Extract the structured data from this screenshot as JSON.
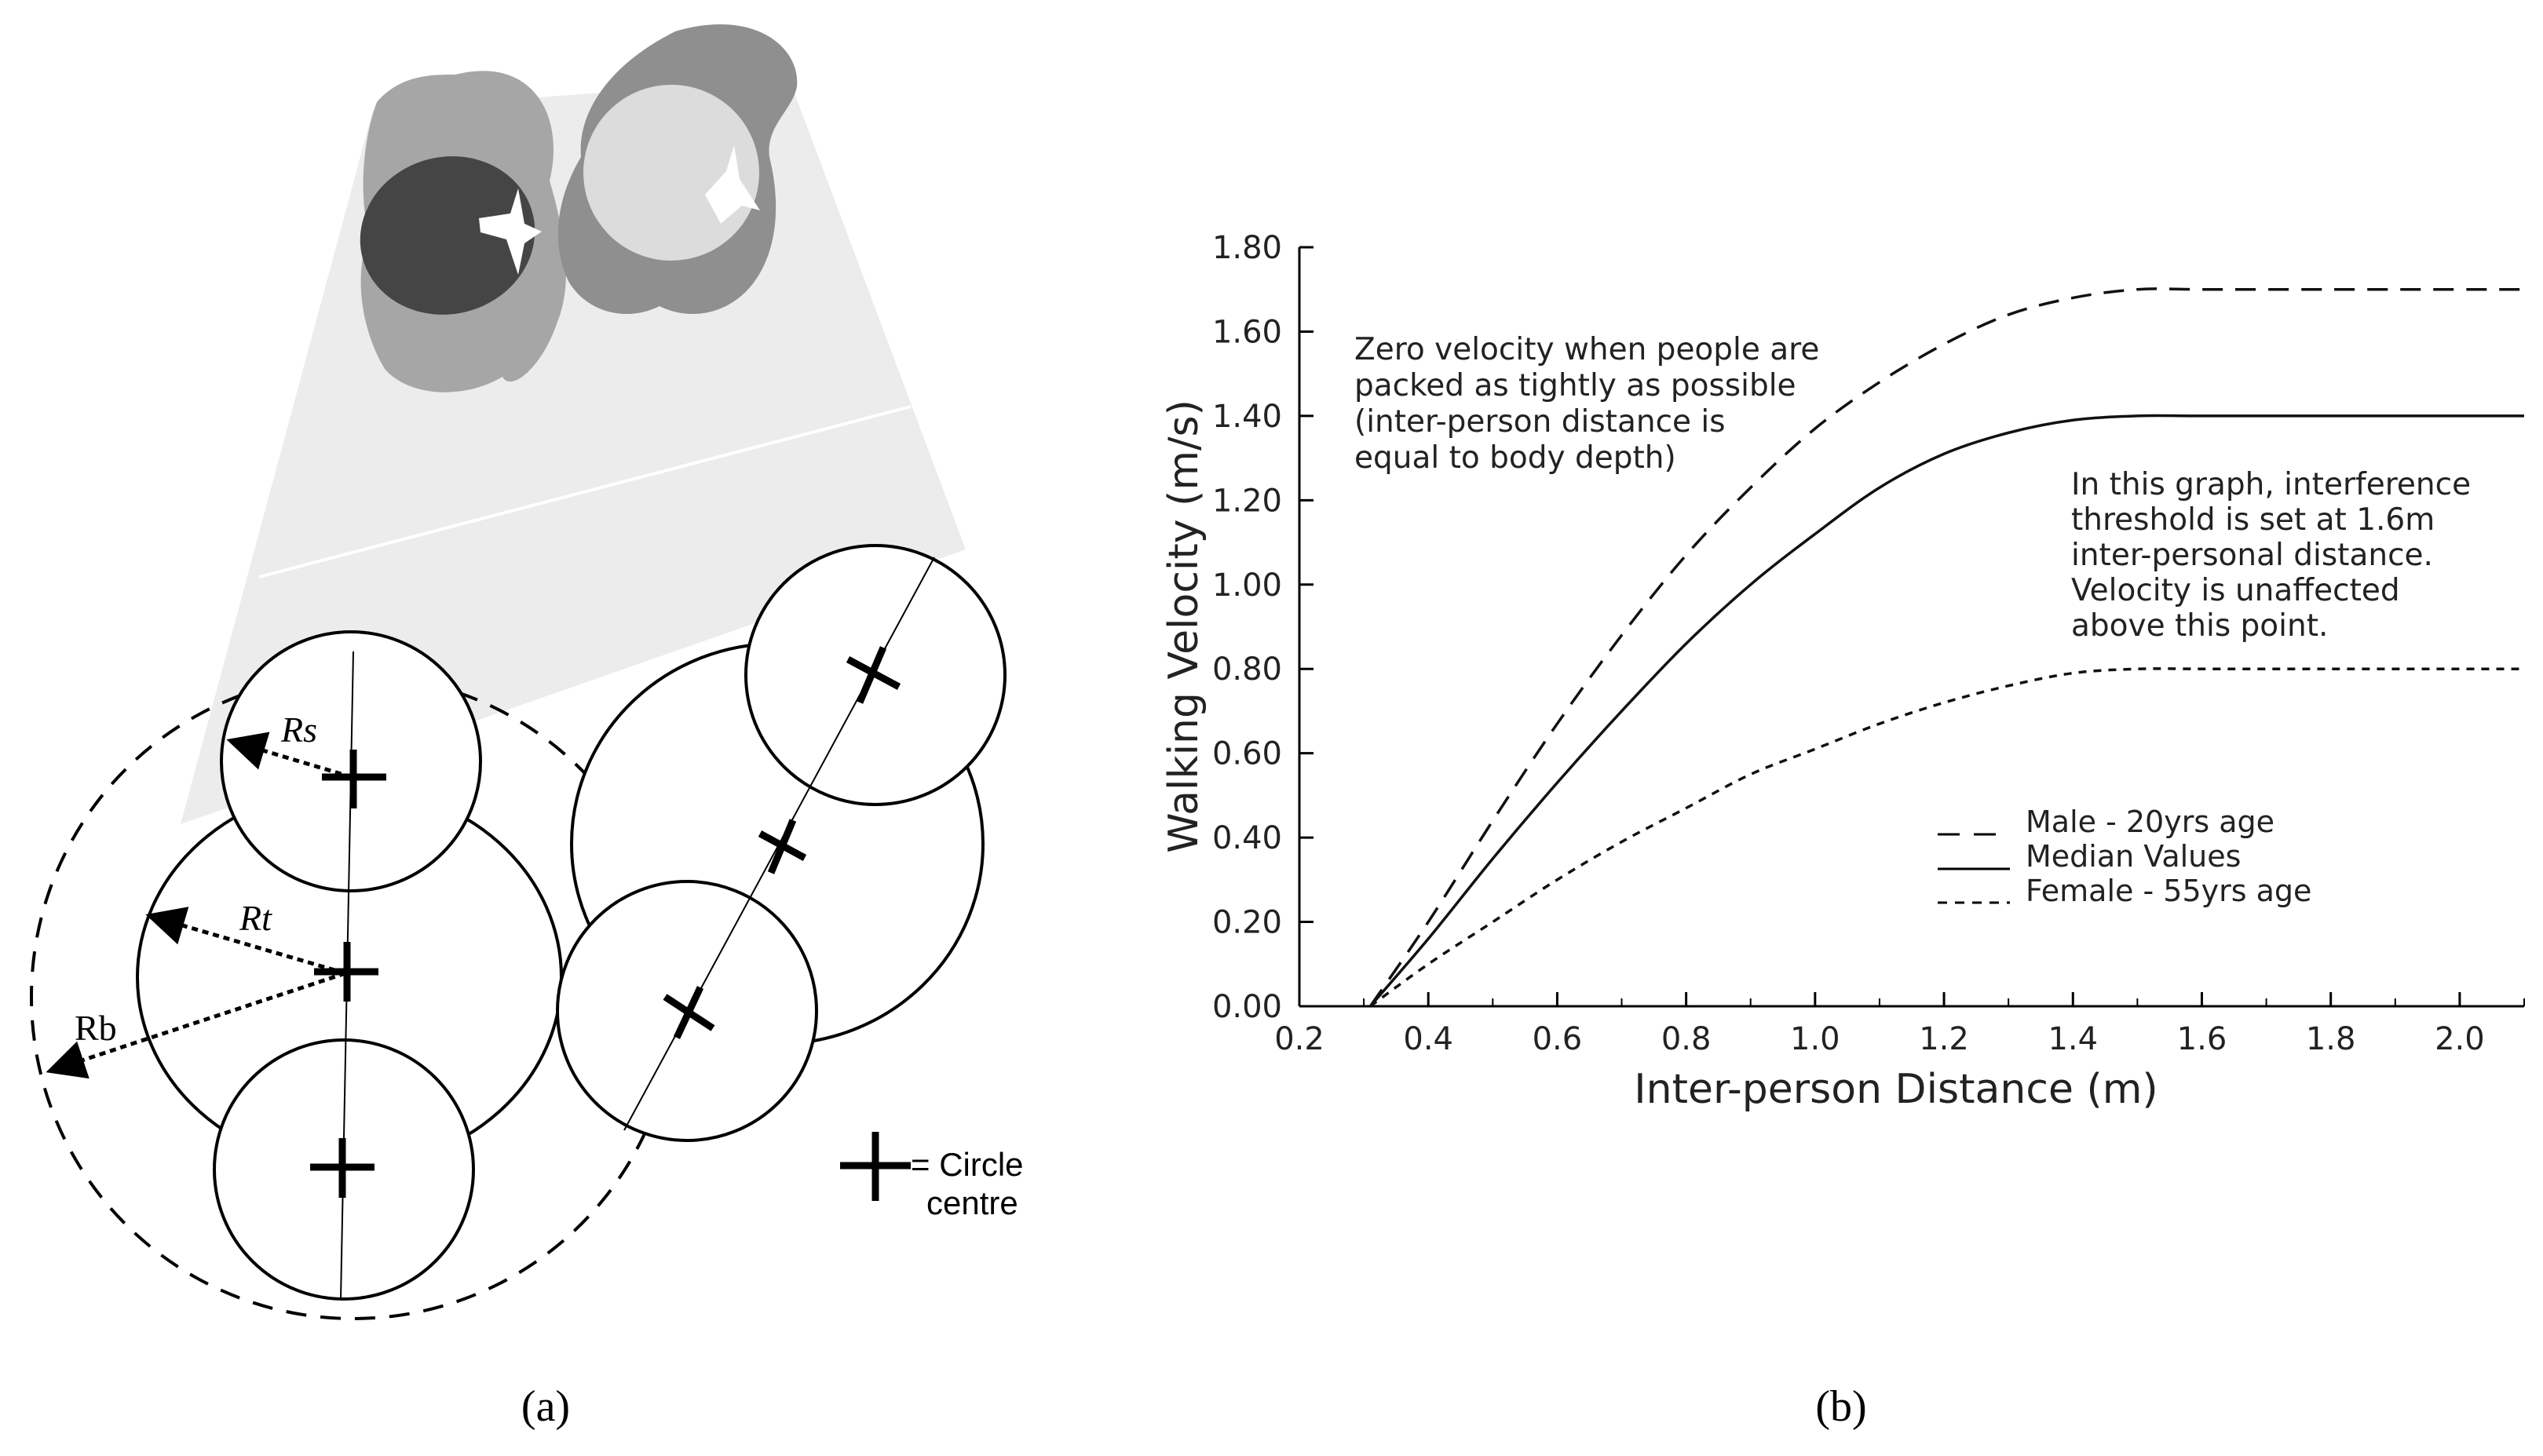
{
  "panel_a": {
    "caption": "(a)",
    "labels": {
      "rs": "Rs",
      "rt": "Rt",
      "rb": "Rb"
    },
    "legend": {
      "line1": "= Circle",
      "line2": "centre"
    },
    "colors": {
      "shoulder_light": "#a6a6a6",
      "shoulder_dark": "#8f8f8f",
      "head_dark": "#454545",
      "head_light": "#dcdcdc",
      "cone": "#ececec"
    }
  },
  "panel_b": {
    "caption": "(b)",
    "annotation_left": [
      "Zero velocity when people are",
      "packed as tightly as possible",
      "(inter-person distance is",
      "equal to body depth)"
    ],
    "annotation_right": [
      "In this graph, interference",
      "threshold is set at 1.6m",
      "inter-personal distance.",
      "Velocity is unaffected",
      "above this point."
    ]
  },
  "chart_data": {
    "type": "line",
    "title": "",
    "xlabel": "Inter-person Distance (m)",
    "ylabel": "Walking Velocity (m/s)",
    "xlim": [
      0.2,
      2.1
    ],
    "ylim": [
      0.0,
      1.8
    ],
    "xticks": [
      "0.2",
      "0.4",
      "0.6",
      "0.8",
      "1.0",
      "1.2",
      "1.4",
      "1.6",
      "1.8",
      "2.0"
    ],
    "yticks": [
      "0.00",
      "0.20",
      "0.40",
      "0.60",
      "0.80",
      "1.00",
      "1.20",
      "1.40",
      "1.60",
      "1.80"
    ],
    "legend_position": "lower-right",
    "series": [
      {
        "name": "Male - 20yrs age",
        "style": "long-dash",
        "x": [
          0.31,
          0.4,
          0.5,
          0.6,
          0.7,
          0.8,
          0.9,
          1.0,
          1.1,
          1.2,
          1.3,
          1.4,
          1.5,
          1.6,
          1.8,
          2.0,
          2.1
        ],
        "y": [
          0.0,
          0.2,
          0.44,
          0.67,
          0.88,
          1.07,
          1.23,
          1.37,
          1.48,
          1.57,
          1.64,
          1.68,
          1.7,
          1.7,
          1.7,
          1.7,
          1.7
        ]
      },
      {
        "name": "Median Values",
        "style": "solid",
        "x": [
          0.31,
          0.4,
          0.5,
          0.6,
          0.7,
          0.8,
          0.9,
          1.0,
          1.1,
          1.2,
          1.3,
          1.4,
          1.5,
          1.6,
          1.8,
          2.0,
          2.1
        ],
        "y": [
          0.0,
          0.16,
          0.35,
          0.53,
          0.7,
          0.86,
          1.0,
          1.12,
          1.23,
          1.31,
          1.36,
          1.39,
          1.4,
          1.4,
          1.4,
          1.4,
          1.4
        ]
      },
      {
        "name": "Female - 55yrs age",
        "style": "short-dash",
        "x": [
          0.31,
          0.4,
          0.5,
          0.6,
          0.7,
          0.8,
          0.9,
          1.0,
          1.1,
          1.2,
          1.3,
          1.4,
          1.5,
          1.6,
          1.8,
          2.0,
          2.1
        ],
        "y": [
          0.0,
          0.1,
          0.2,
          0.3,
          0.39,
          0.47,
          0.55,
          0.61,
          0.67,
          0.72,
          0.76,
          0.79,
          0.8,
          0.8,
          0.8,
          0.8,
          0.8
        ]
      }
    ]
  }
}
